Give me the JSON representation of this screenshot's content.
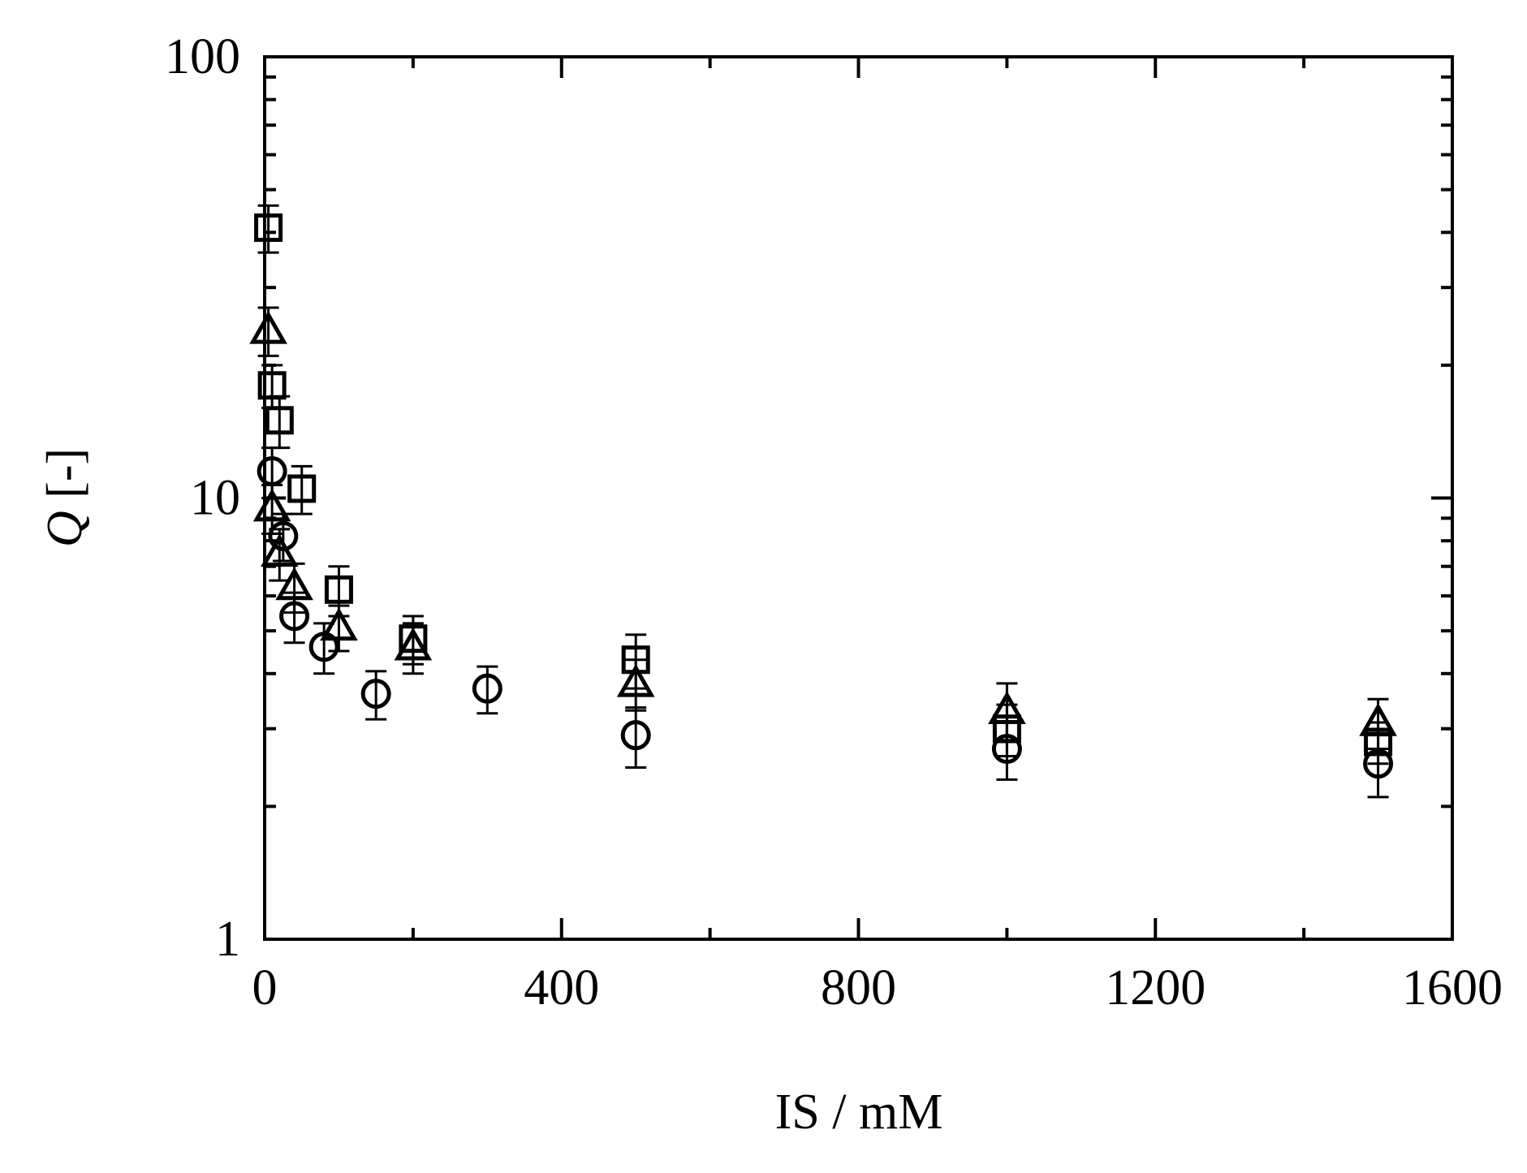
{
  "chart_data": {
    "type": "scatter",
    "title": "",
    "xlabel": "IS / mM",
    "ylabel_symbol": "Q",
    "ylabel_unit": " [-]",
    "xlim": [
      0,
      1600
    ],
    "ylim": [
      1,
      100
    ],
    "yscale": "log",
    "grid": false,
    "xticks": [
      0,
      400,
      800,
      1200,
      1600
    ],
    "xtick_labels": [
      "0",
      "400",
      "800",
      "1200",
      "1600"
    ],
    "yticks": [
      1,
      10,
      100
    ],
    "ytick_labels": [
      "1",
      "10",
      "100"
    ],
    "series": [
      {
        "marker": "square",
        "points": [
          {
            "x": 5,
            "y": 41,
            "err": 5
          },
          {
            "x": 10,
            "y": 18,
            "err": 2
          },
          {
            "x": 20,
            "y": 15,
            "err": 2
          },
          {
            "x": 50,
            "y": 10.5,
            "err": 1.3
          },
          {
            "x": 100,
            "y": 6.2,
            "err": 0.8
          },
          {
            "x": 200,
            "y": 4.8,
            "err": 0.6
          },
          {
            "x": 500,
            "y": 4.3,
            "err": 0.6
          },
          {
            "x": 1000,
            "y": 3.0,
            "err": 0.4
          },
          {
            "x": 1500,
            "y": 2.8,
            "err": 0.3
          }
        ]
      },
      {
        "marker": "triangle",
        "points": [
          {
            "x": 5,
            "y": 24,
            "err": 3
          },
          {
            "x": 10,
            "y": 9.5,
            "err": 1.2
          },
          {
            "x": 20,
            "y": 7.5,
            "err": 1.0
          },
          {
            "x": 40,
            "y": 6.3,
            "err": 0.8
          },
          {
            "x": 100,
            "y": 5.1,
            "err": 0.6
          },
          {
            "x": 200,
            "y": 4.6,
            "err": 0.6
          },
          {
            "x": 500,
            "y": 3.8,
            "err": 0.5
          },
          {
            "x": 1000,
            "y": 3.3,
            "err": 0.5
          },
          {
            "x": 1500,
            "y": 3.1,
            "err": 0.4
          }
        ]
      },
      {
        "marker": "circle",
        "points": [
          {
            "x": 10,
            "y": 11.5,
            "err": 1.5
          },
          {
            "x": 25,
            "y": 8.2,
            "err": 1.0
          },
          {
            "x": 40,
            "y": 5.4,
            "err": 0.7
          },
          {
            "x": 80,
            "y": 4.6,
            "err": 0.6
          },
          {
            "x": 150,
            "y": 3.6,
            "err": 0.45
          },
          {
            "x": 300,
            "y": 3.7,
            "err": 0.45
          },
          {
            "x": 500,
            "y": 2.9,
            "err": 0.45
          },
          {
            "x": 1000,
            "y": 2.7,
            "err": 0.4
          },
          {
            "x": 1500,
            "y": 2.5,
            "err": 0.4
          }
        ]
      }
    ]
  }
}
